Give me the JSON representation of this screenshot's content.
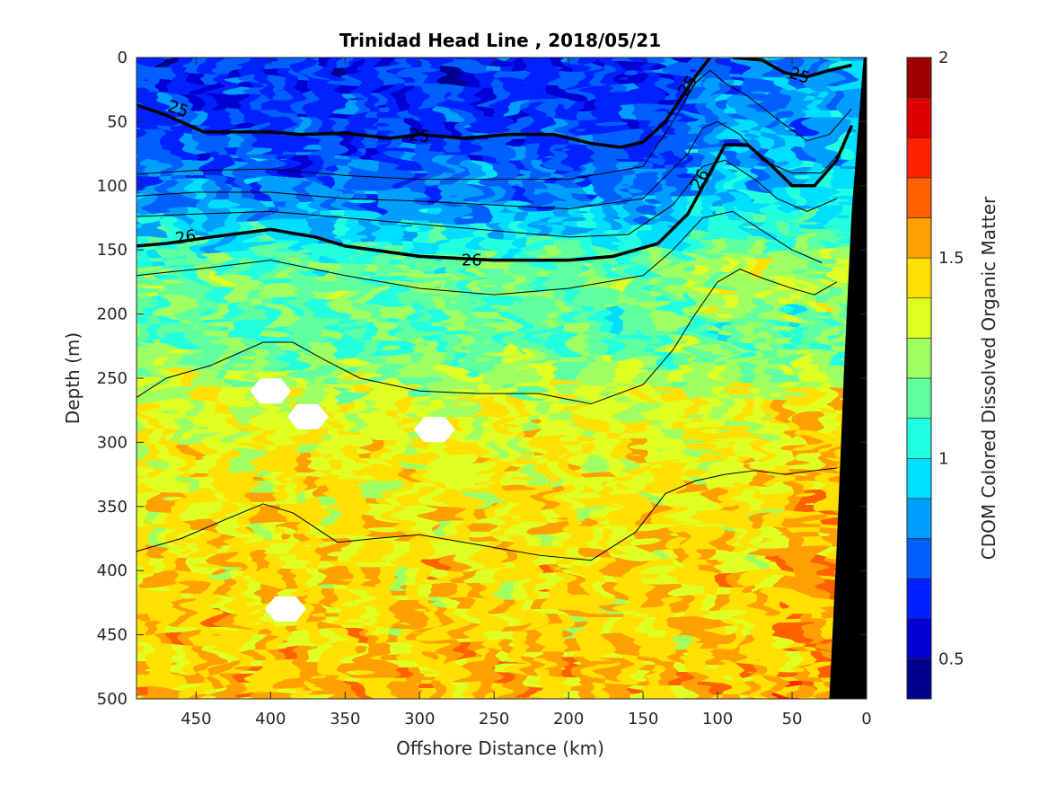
{
  "chart_data": {
    "type": "heatmap",
    "title": "Trinidad Head Line , 2018/05/21",
    "xlabel": "Offshore Distance (km)",
    "ylabel": "Depth (m)",
    "colorbar_label": "CDOM Colored Dissolved Organic Matter",
    "xlim": [
      490,
      0
    ],
    "ylim": [
      0,
      500
    ],
    "x_reversed": true,
    "y_reversed": true,
    "x_ticks": [
      450,
      400,
      350,
      300,
      250,
      200,
      150,
      100,
      50,
      0
    ],
    "y_ticks": [
      0,
      50,
      100,
      150,
      200,
      250,
      300,
      350,
      400,
      450,
      500
    ],
    "colorbar_range": [
      0.4,
      2.0
    ],
    "colorbar_ticks": [
      0.5,
      1,
      1.5,
      2
    ],
    "colorbar_levels": 16,
    "colors": [
      "#00008F",
      "#0000D4",
      "#0020FF",
      "#0060FF",
      "#009FFF",
      "#00DFFF",
      "#20FFDF",
      "#5FFF9F",
      "#9FFF60",
      "#DFFF20",
      "#FFE000",
      "#FFA000",
      "#FF6000",
      "#FF2000",
      "#DF0000",
      "#9F0000"
    ],
    "grid": false,
    "profile": [
      {
        "depth": 0,
        "value": 0.66
      },
      {
        "depth": 40,
        "value": 0.68
      },
      {
        "depth": 80,
        "value": 0.74
      },
      {
        "depth": 110,
        "value": 0.84
      },
      {
        "depth": 135,
        "value": 0.98
      },
      {
        "depth": 155,
        "value": 1.15
      },
      {
        "depth": 180,
        "value": 1.18
      },
      {
        "depth": 210,
        "value": 1.12
      },
      {
        "depth": 240,
        "value": 1.25
      },
      {
        "depth": 270,
        "value": 1.35
      },
      {
        "depth": 300,
        "value": 1.38
      },
      {
        "depth": 350,
        "value": 1.42
      },
      {
        "depth": 400,
        "value": 1.44
      },
      {
        "depth": 450,
        "value": 1.46
      },
      {
        "depth": 500,
        "value": 1.5
      }
    ],
    "density_contours": [
      {
        "level": "25",
        "bold": true,
        "points": [
          [
            490,
            37
          ],
          [
            470,
            45
          ],
          [
            445,
            58
          ],
          [
            400,
            58
          ],
          [
            380,
            60
          ],
          [
            350,
            59
          ],
          [
            320,
            63
          ],
          [
            300,
            60
          ],
          [
            270,
            63
          ],
          [
            240,
            60
          ],
          [
            210,
            60
          ],
          [
            185,
            67
          ],
          [
            165,
            70
          ],
          [
            150,
            66
          ],
          [
            135,
            50
          ],
          [
            115,
            15
          ],
          [
            105,
            0
          ]
        ]
      },
      {
        "level": "25",
        "bold": true,
        "points": [
          [
            90,
            0
          ],
          [
            70,
            2
          ],
          [
            55,
            12
          ],
          [
            40,
            15
          ],
          [
            25,
            10
          ],
          [
            10,
            6
          ]
        ]
      },
      {
        "level": "26",
        "bold": true,
        "points": [
          [
            490,
            147
          ],
          [
            470,
            145
          ],
          [
            440,
            140
          ],
          [
            400,
            134
          ],
          [
            370,
            140
          ],
          [
            350,
            147
          ],
          [
            300,
            155
          ],
          [
            250,
            158
          ],
          [
            200,
            158
          ],
          [
            170,
            155
          ],
          [
            140,
            145
          ],
          [
            120,
            122
          ],
          [
            105,
            90
          ],
          [
            95,
            68
          ],
          [
            80,
            68
          ],
          [
            65,
            83
          ],
          [
            50,
            100
          ],
          [
            35,
            100
          ],
          [
            20,
            80
          ],
          [
            10,
            53
          ]
        ]
      },
      {
        "level": "",
        "bold": false,
        "points": [
          [
            490,
            91
          ],
          [
            450,
            88
          ],
          [
            400,
            87
          ],
          [
            350,
            92
          ],
          [
            300,
            95
          ],
          [
            250,
            95
          ],
          [
            200,
            95
          ],
          [
            150,
            85
          ],
          [
            130,
            50
          ],
          [
            115,
            20
          ],
          [
            105,
            10
          ],
          [
            95,
            20
          ],
          [
            80,
            30
          ],
          [
            60,
            48
          ],
          [
            40,
            65
          ],
          [
            25,
            60
          ],
          [
            10,
            40
          ]
        ]
      },
      {
        "level": "",
        "bold": false,
        "points": [
          [
            490,
            108
          ],
          [
            450,
            105
          ],
          [
            400,
            105
          ],
          [
            350,
            110
          ],
          [
            300,
            112
          ],
          [
            250,
            115
          ],
          [
            200,
            118
          ],
          [
            150,
            110
          ],
          [
            120,
            75
          ],
          [
            110,
            55
          ],
          [
            100,
            50
          ],
          [
            85,
            60
          ],
          [
            70,
            80
          ],
          [
            50,
            90
          ],
          [
            30,
            90
          ],
          [
            15,
            70
          ]
        ]
      },
      {
        "level": "",
        "bold": false,
        "points": [
          [
            490,
            124
          ],
          [
            450,
            122
          ],
          [
            400,
            120
          ],
          [
            350,
            125
          ],
          [
            300,
            130
          ],
          [
            250,
            135
          ],
          [
            200,
            140
          ],
          [
            160,
            138
          ],
          [
            130,
            115
          ],
          [
            110,
            85
          ],
          [
            95,
            80
          ],
          [
            75,
            95
          ],
          [
            60,
            110
          ],
          [
            40,
            120
          ],
          [
            20,
            110
          ]
        ]
      },
      {
        "level": "",
        "bold": false,
        "points": [
          [
            490,
            170
          ],
          [
            450,
            165
          ],
          [
            400,
            158
          ],
          [
            350,
            170
          ],
          [
            300,
            180
          ],
          [
            250,
            185
          ],
          [
            200,
            180
          ],
          [
            150,
            170
          ],
          [
            130,
            150
          ],
          [
            110,
            125
          ],
          [
            90,
            120
          ],
          [
            70,
            135
          ],
          [
            50,
            150
          ],
          [
            30,
            160
          ]
        ]
      },
      {
        "level": "",
        "bold": false,
        "points": [
          [
            490,
            265
          ],
          [
            470,
            250
          ],
          [
            440,
            240
          ],
          [
            405,
            222
          ],
          [
            385,
            222
          ],
          [
            365,
            235
          ],
          [
            340,
            250
          ],
          [
            300,
            260
          ],
          [
            260,
            262
          ],
          [
            220,
            262
          ],
          [
            185,
            270
          ],
          [
            150,
            255
          ],
          [
            130,
            228
          ],
          [
            115,
            200
          ],
          [
            100,
            175
          ],
          [
            85,
            165
          ],
          [
            70,
            172
          ],
          [
            50,
            180
          ],
          [
            35,
            185
          ],
          [
            20,
            175
          ]
        ]
      },
      {
        "level": "",
        "bold": false,
        "points": [
          [
            490,
            385
          ],
          [
            460,
            375
          ],
          [
            430,
            360
          ],
          [
            405,
            348
          ],
          [
            385,
            355
          ],
          [
            355,
            378
          ],
          [
            330,
            375
          ],
          [
            300,
            372
          ],
          [
            260,
            380
          ],
          [
            220,
            388
          ],
          [
            185,
            392
          ],
          [
            155,
            370
          ],
          [
            135,
            340
          ],
          [
            115,
            330
          ],
          [
            95,
            325
          ],
          [
            75,
            322
          ],
          [
            55,
            325
          ],
          [
            35,
            322
          ],
          [
            20,
            320
          ]
        ]
      }
    ],
    "missing_patches": [
      [
        400,
        260
      ],
      [
        375,
        280
      ],
      [
        290,
        290
      ],
      [
        390,
        430
      ]
    ],
    "bathymetry": [
      [
        25,
        500
      ],
      [
        20,
        380
      ],
      [
        15,
        240
      ],
      [
        10,
        120
      ],
      [
        2,
        0
      ],
      [
        0,
        0
      ],
      [
        0,
        500
      ]
    ]
  }
}
